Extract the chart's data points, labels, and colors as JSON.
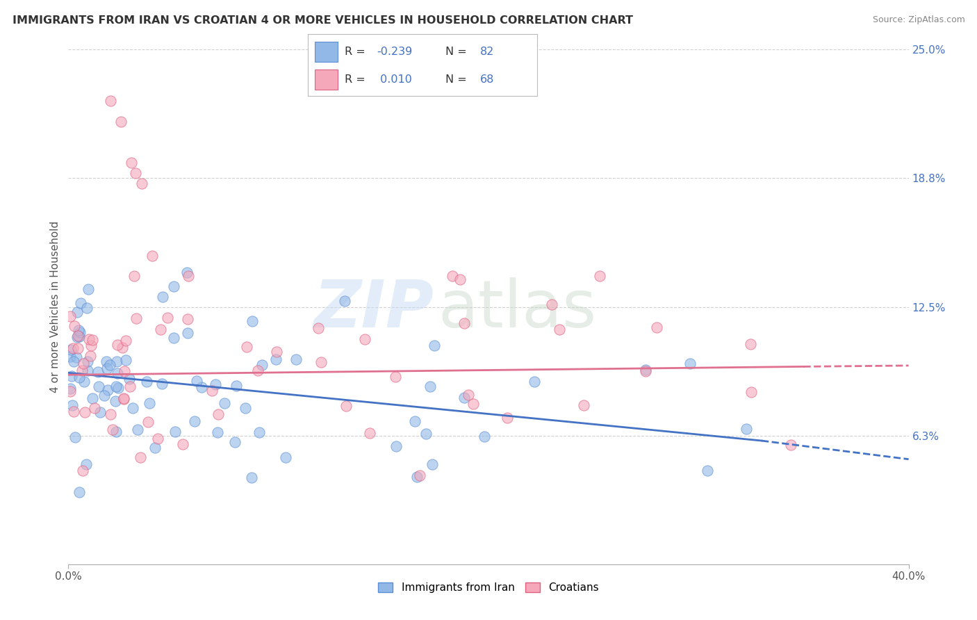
{
  "title": "IMMIGRANTS FROM IRAN VS CROATIAN 4 OR MORE VEHICLES IN HOUSEHOLD CORRELATION CHART",
  "source_text": "Source: ZipAtlas.com",
  "ylabel": "4 or more Vehicles in Household",
  "xlim": [
    0.0,
    40.0
  ],
  "ylim": [
    0.0,
    25.0
  ],
  "ytick_positions": [
    6.25,
    12.5,
    18.75,
    25.0
  ],
  "ytick_labels": [
    "6.3%",
    "12.5%",
    "18.8%",
    "25.0%"
  ],
  "iran_color": "#92b8e8",
  "iran_edge_color": "#5b8fd4",
  "croatian_color": "#f4a8ba",
  "croatian_edge_color": "#e06080",
  "iran_line_color": "#4472c4",
  "croatian_line_color": "#e07090",
  "iran_R": -0.239,
  "iran_N": 82,
  "croatian_R": 0.01,
  "croatian_N": 68,
  "iran_label": "Immigrants from Iran",
  "croatian_label": "Croatians",
  "watermark_zip": "ZIP",
  "watermark_atlas": "atlas",
  "background_color": "#ffffff",
  "grid_color": "#d0d0d0",
  "iran_reg_y_at0": 9.3,
  "iran_reg_y_at35": 5.8,
  "iran_reg_dashed_y_at40": 5.1,
  "croatian_reg_y_at0": 9.2,
  "croatian_reg_y_at35": 9.6,
  "croatian_reg_dashed_y_at40": 9.65
}
